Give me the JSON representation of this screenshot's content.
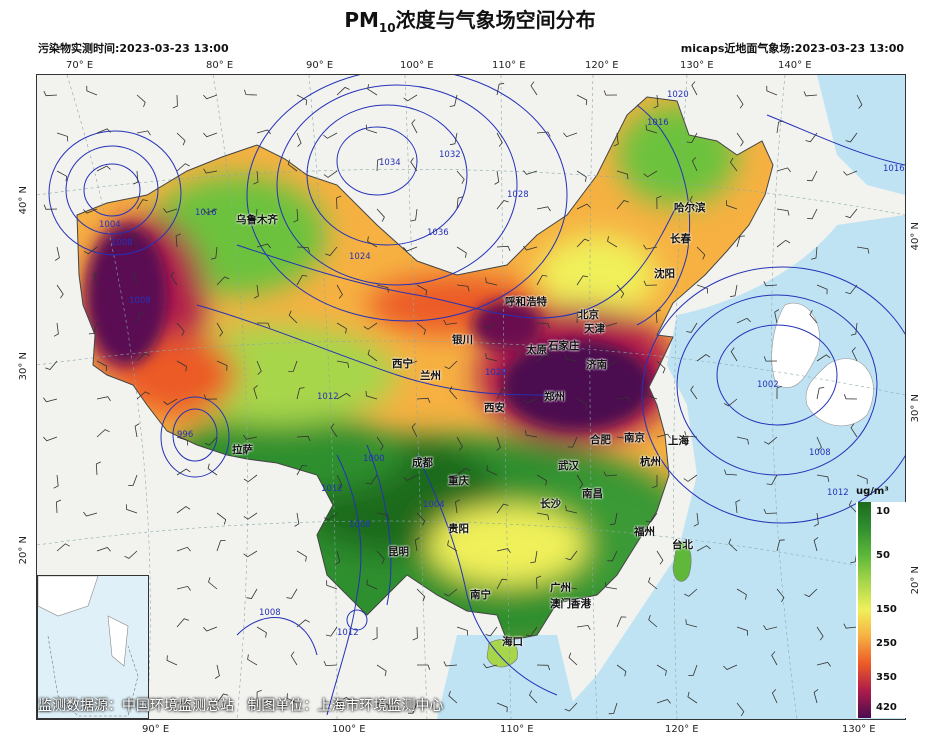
{
  "title_main": "PM",
  "title_sub": "10",
  "title_rest": "浓度与气象场空间分布",
  "subtitle_left": "污染物实测时间:2023-03-23 13:00",
  "subtitle_right": "micaps近地面气象场:2023-03-23 13:00",
  "lon_top": [
    "70° E",
    "80° E",
    "90° E",
    "100° E",
    "110° E",
    "120° E",
    "130° E",
    "140° E"
  ],
  "lon_bottom": [
    "90° E",
    "100° E",
    "110° E",
    "120° E",
    "130° E"
  ],
  "lat_left": [
    "40° N",
    "30° N",
    "20° N"
  ],
  "lat_right": [
    "40° N",
    "30° N",
    "20° N"
  ],
  "cities": [
    "乌鲁木齐",
    "哈尔滨",
    "长春",
    "沈阳",
    "呼和浩特",
    "北京",
    "天津",
    "银川",
    "太原",
    "石家庄",
    "济南",
    "西宁",
    "兰州",
    "西安",
    "郑州",
    "合肥",
    "南京",
    "上海",
    "拉萨",
    "成都",
    "武汉",
    "杭州",
    "重庆",
    "长沙",
    "南昌",
    "贵阳",
    "福州",
    "昆明",
    "台北",
    "广州",
    "南宁",
    "香港",
    "澳门",
    "海口"
  ],
  "isobar_labels": [
    "1004",
    "1008",
    "1012",
    "1016",
    "1020",
    "1024",
    "1028",
    "1032",
    "1036",
    "1034",
    "1000",
    "1004",
    "1008",
    "1012",
    "1016",
    "996",
    "1008",
    "1012",
    "1016",
    "1020",
    "1002",
    "1008",
    "1012",
    "1016"
  ],
  "legend": {
    "unit": "ug/m³",
    "ticks": [
      "10",
      "50",
      "150",
      "250",
      "350",
      "420"
    ]
  },
  "footer": "监测数据源：中国环境监测总站   制图单位：上海市环境监测中心",
  "colors": {
    "low": "#1e6a1e",
    "mid": "#f0f05a",
    "high": "#ec5a27",
    "extreme": "#4b0b4f",
    "isobar": "#2432b8",
    "sea": "#bfe3f3"
  }
}
